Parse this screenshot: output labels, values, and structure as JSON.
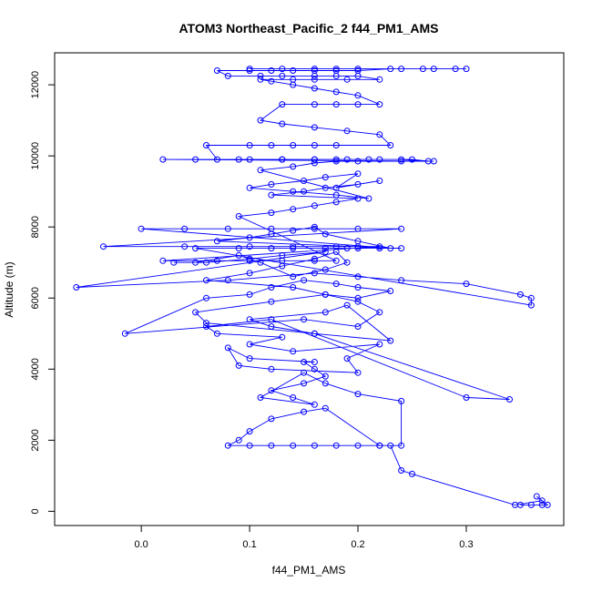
{
  "chart_data": {
    "type": "scatter",
    "title": "ATOM3 Northeast_Pacific_2 f44_PM1_AMS",
    "xlabel": "f44_PM1_AMS",
    "ylabel": "Altitude (m)",
    "xlim": [
      -0.08,
      0.39
    ],
    "ylim": [
      -400,
      12900
    ],
    "xticks": [
      0.0,
      0.1,
      0.2,
      0.3
    ],
    "xtick_labels": [
      "0.0",
      "0.1",
      "0.2",
      "0.3"
    ],
    "yticks": [
      0,
      2000,
      4000,
      6000,
      8000,
      10000,
      12000
    ],
    "ytick_labels": [
      "0",
      "2000",
      "4000",
      "6000",
      "8000",
      "10000",
      "12000"
    ],
    "grid": false,
    "style": {
      "color": "#0000ff",
      "marker": "open-circle",
      "connect": true
    },
    "series": [
      {
        "x": [
          0.36,
          0.35,
          0.37,
          0.375,
          0.365,
          0.37,
          0.345,
          0.25,
          0.24,
          0.23,
          0.22,
          0.2,
          0.18,
          0.16,
          0.14,
          0.12,
          0.1,
          0.08,
          0.09,
          0.1,
          0.12,
          0.15,
          0.17,
          0.22,
          0.24,
          0.24,
          0.2,
          0.17,
          0.15,
          0.11,
          0.16,
          0.14,
          0.12,
          0.15,
          0.17,
          0.16,
          0.15,
          0.16,
          0.1,
          0.08,
          0.09,
          0.12,
          0.2,
          0.19,
          0.22,
          0.14,
          0.1,
          0.13,
          0.07,
          0.06,
          0.12,
          0.3,
          0.34,
          0.16,
          0.12,
          0.1,
          0.17,
          0.19,
          0.23,
          0.16,
          0.06,
          0.05,
          0.12,
          0.17,
          0.2,
          0.23,
          0.2,
          0.18,
          0.15,
          0.12,
          0.1,
          0.06,
          -0.015,
          0.15,
          0.2,
          0.22,
          0.2,
          0.17,
          0.14,
          0.06,
          0.1,
          0.13,
          0.16,
          0.18,
          0.19,
          0.17,
          0.14,
          0.11,
          0.09,
          0.05,
          0.03,
          0.06,
          0.1,
          0.13,
          0.17,
          -0.06,
          0.08,
          0.16,
          0.2,
          0.24,
          0.3,
          0.35,
          0.36,
          0.36,
          0.05,
          0.09,
          0.12,
          0.14,
          0.17,
          0.19,
          0.2,
          0.22,
          0.24,
          0.07,
          0.1,
          0.12,
          0.14,
          0.16,
          0.17,
          0.2,
          0.23,
          0.0,
          0.04,
          0.08,
          0.12,
          0.16,
          0.2,
          0.24,
          -0.035,
          0.04,
          0.1,
          0.14,
          0.18,
          0.2,
          0.22,
          0.02,
          0.07,
          0.1,
          0.13,
          0.16,
          0.18,
          0.09,
          0.12,
          0.14,
          0.16,
          0.18,
          0.2,
          0.12,
          0.15,
          0.17,
          0.2,
          0.22,
          0.18,
          0.2,
          0.17,
          0.15,
          0.12,
          0.1,
          0.14,
          0.18,
          0.21,
          0.11,
          0.14,
          0.16,
          0.18,
          0.2,
          0.24,
          0.27,
          0.02,
          0.05,
          0.09,
          0.13,
          0.16,
          0.19,
          0.22,
          0.25,
          0.265,
          0.24,
          0.21,
          0.18,
          0.16,
          0.13,
          0.1,
          0.07,
          0.06,
          0.1,
          0.12,
          0.14,
          0.16,
          0.18,
          0.23,
          0.22,
          0.19,
          0.16,
          0.13,
          0.11,
          0.13,
          0.16,
          0.18,
          0.2,
          0.22,
          0.2,
          0.18,
          0.16,
          0.14,
          0.12,
          0.11,
          0.14,
          0.16,
          0.19,
          0.22,
          0.2,
          0.18,
          0.16,
          0.13,
          0.11,
          0.08,
          0.07,
          0.1,
          0.12,
          0.14,
          0.16,
          0.18,
          0.2,
          0.23,
          0.26,
          0.29,
          0.3,
          0.27,
          0.24,
          0.2,
          0.18,
          0.16,
          0.13,
          0.1
        ],
        "y": [
          180,
          180,
          180,
          180,
          420,
          300,
          180,
          1050,
          1150,
          1850,
          1850,
          1850,
          1850,
          1850,
          1850,
          1850,
          1850,
          1850,
          2000,
          2250,
          2600,
          2800,
          2900,
          1850,
          1850,
          3100,
          3300,
          3600,
          3900,
          3200,
          3000,
          3200,
          3400,
          3600,
          3800,
          4000,
          4200,
          4200,
          4300,
          4600,
          4100,
          4000,
          3900,
          4300,
          4700,
          4500,
          4700,
          4900,
          5000,
          5200,
          5400,
          3200,
          3150,
          5000,
          5200,
          5400,
          5600,
          5800,
          4800,
          5000,
          5300,
          5600,
          5900,
          6100,
          6000,
          6200,
          6300,
          6400,
          6500,
          6300,
          6100,
          6000,
          5000,
          5400,
          5200,
          5600,
          5900,
          6100,
          6300,
          6500,
          6700,
          6900,
          7100,
          7300,
          7000,
          6800,
          6600,
          7000,
          7200,
          7000,
          7000,
          7000,
          7100,
          7200,
          7300,
          6300,
          6500,
          6700,
          6600,
          6500,
          6400,
          6100,
          6000,
          5800,
          7400,
          7400,
          7400,
          7400,
          7400,
          7400,
          7400,
          7400,
          7400,
          7600,
          7700,
          7800,
          7900,
          8000,
          7800,
          7600,
          7400,
          7950,
          7950,
          7950,
          7950,
          7950,
          7950,
          7950,
          7450,
          7450,
          7450,
          7450,
          7450,
          7450,
          7450,
          7050,
          7050,
          7050,
          7050,
          7050,
          7050,
          8300,
          8400,
          8500,
          8600,
          8700,
          8800,
          8900,
          9000,
          9100,
          9200,
          9300,
          9100,
          9500,
          9400,
          9300,
          9200,
          9100,
          9000,
          8900,
          8800,
          9600,
          9700,
          9800,
          9850,
          9850,
          9850,
          9850,
          9900,
          9900,
          9900,
          9900,
          9900,
          9900,
          9900,
          9900,
          9850,
          9900,
          9900,
          9900,
          9900,
          9900,
          9900,
          9900,
          10300,
          10300,
          10300,
          10300,
          10300,
          10300,
          10300,
          10600,
          10700,
          10800,
          10900,
          11000,
          11450,
          11450,
          11450,
          11450,
          11450,
          11700,
          11800,
          11900,
          12000,
          12100,
          12150,
          12150,
          12150,
          12150,
          12150,
          12250,
          12250,
          12250,
          12250,
          12250,
          12250,
          12400,
          12400,
          12400,
          12400,
          12400,
          12400,
          12400,
          12450,
          12450,
          12450,
          12450,
          12450,
          12450,
          12450,
          12450,
          12450,
          12450,
          12450
        ]
      }
    ]
  }
}
